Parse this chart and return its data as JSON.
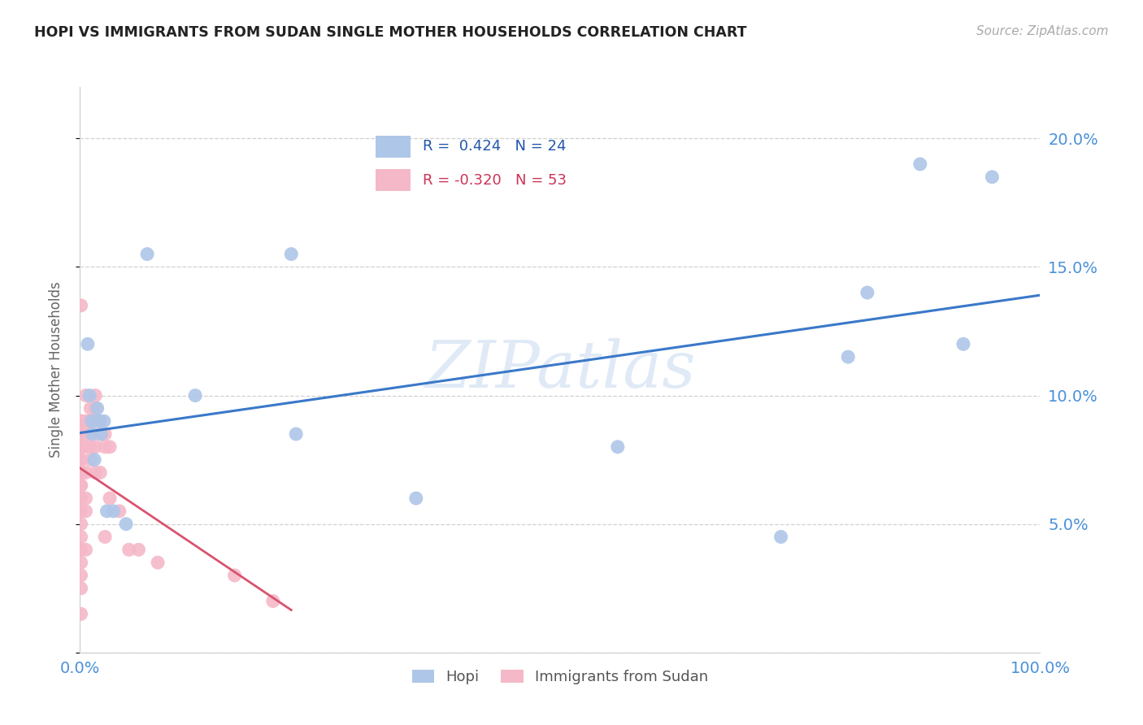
{
  "title": "HOPI VS IMMIGRANTS FROM SUDAN SINGLE MOTHER HOUSEHOLDS CORRELATION CHART",
  "source": "Source: ZipAtlas.com",
  "ylabel": "Single Mother Households",
  "watermark": "ZIPatlas",
  "legend_hopi": "Hopi",
  "legend_sudan": "Immigrants from Sudan",
  "hopi_R": 0.424,
  "hopi_N": 24,
  "sudan_R": -0.32,
  "sudan_N": 53,
  "xlim": [
    0,
    1.0
  ],
  "ylim": [
    0,
    0.22
  ],
  "xtick_positions": [
    0.0,
    0.5,
    1.0
  ],
  "xticklabels": [
    "0.0%",
    "",
    "100.0%"
  ],
  "ytick_positions": [
    0.0,
    0.05,
    0.1,
    0.15,
    0.2
  ],
  "yticklabels": [
    "",
    "5.0%",
    "10.0%",
    "15.0%",
    "20.0%"
  ],
  "hopi_color": "#aec6e8",
  "hopi_line_color": "#3a78c9",
  "sudan_color": "#f5b8c8",
  "sudan_line_color": "#d9536e",
  "background_color": "#ffffff",
  "grid_color": "#d0d0d0",
  "title_color": "#222222",
  "axis_tick_color": "#4a90d9",
  "hopi_x": [
    0.008,
    0.01,
    0.012,
    0.013,
    0.015,
    0.018,
    0.02,
    0.022,
    0.025,
    0.028,
    0.035,
    0.048,
    0.07,
    0.12,
    0.22,
    0.225,
    0.35,
    0.56,
    0.73,
    0.8,
    0.82,
    0.875,
    0.92,
    0.95
  ],
  "hopi_y": [
    0.12,
    0.1,
    0.09,
    0.085,
    0.075,
    0.095,
    0.09,
    0.085,
    0.09,
    0.055,
    0.055,
    0.05,
    0.155,
    0.1,
    0.155,
    0.085,
    0.06,
    0.08,
    0.045,
    0.115,
    0.14,
    0.19,
    0.12,
    0.185
  ],
  "sudan_x": [
    0.001,
    0.001,
    0.001,
    0.001,
    0.001,
    0.001,
    0.001,
    0.001,
    0.001,
    0.001,
    0.001,
    0.001,
    0.001,
    0.001,
    0.001,
    0.001,
    0.001,
    0.001,
    0.001,
    0.001,
    0.001,
    0.006,
    0.006,
    0.006,
    0.006,
    0.006,
    0.006,
    0.006,
    0.006,
    0.011,
    0.011,
    0.011,
    0.011,
    0.011,
    0.016,
    0.016,
    0.016,
    0.016,
    0.016,
    0.021,
    0.021,
    0.021,
    0.026,
    0.026,
    0.026,
    0.031,
    0.031,
    0.041,
    0.051,
    0.061,
    0.081,
    0.161,
    0.201
  ],
  "sudan_y": [
    0.135,
    0.09,
    0.09,
    0.085,
    0.08,
    0.075,
    0.075,
    0.07,
    0.07,
    0.065,
    0.065,
    0.06,
    0.055,
    0.05,
    0.045,
    0.04,
    0.04,
    0.035,
    0.03,
    0.025,
    0.015,
    0.1,
    0.09,
    0.085,
    0.08,
    0.07,
    0.06,
    0.055,
    0.04,
    0.095,
    0.09,
    0.085,
    0.08,
    0.075,
    0.1,
    0.095,
    0.09,
    0.08,
    0.07,
    0.09,
    0.085,
    0.07,
    0.085,
    0.08,
    0.045,
    0.08,
    0.06,
    0.055,
    0.04,
    0.04,
    0.035,
    0.03,
    0.02
  ]
}
